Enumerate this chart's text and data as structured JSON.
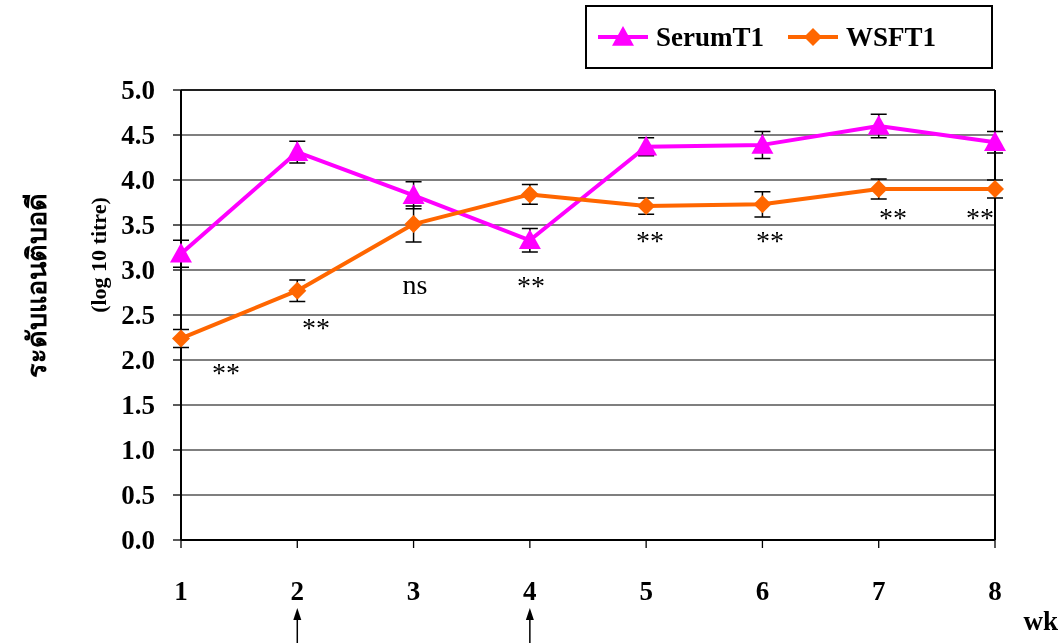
{
  "chart_data": {
    "type": "line",
    "ylabel": "ระดับแอนติบอดี",
    "xlabel": "wk",
    "categories": [
      "1",
      "2",
      "3",
      "4",
      "5",
      "6",
      "7",
      "8"
    ],
    "series": [
      {
        "name": "SerumT1",
        "color": "#ff00ff",
        "marker": "triangle",
        "values": [
          3.18,
          4.31,
          3.83,
          3.33,
          4.37,
          4.39,
          4.6,
          4.42
        ],
        "errors": [
          0.15,
          0.12,
          0.15,
          0.13,
          0.1,
          0.15,
          0.13,
          0.12
        ]
      },
      {
        "name": "WSFT1",
        "color": "#ff6600",
        "marker": "diamond",
        "values": [
          2.24,
          2.77,
          3.51,
          3.84,
          3.71,
          3.73,
          3.9,
          3.9
        ],
        "errors": [
          0.1,
          0.12,
          0.2,
          0.11,
          0.09,
          0.14,
          0.11,
          0.1
        ]
      }
    ],
    "ylim": [
      0,
      5
    ],
    "yticks": [
      {
        "value": 0,
        "label": "0.0"
      },
      {
        "value": 0.5,
        "label": "0.5"
      },
      {
        "value": 1,
        "label": "1.0"
      },
      {
        "value": 1.5,
        "label": "1.5"
      },
      {
        "value": 2,
        "label": "2.0"
      },
      {
        "value": 2.5,
        "label": "2.5"
      },
      {
        "value": 3,
        "label": "3.0"
      },
      {
        "value": 3.5,
        "label": "3.5"
      },
      {
        "value": 4,
        "label": "4.0"
      },
      {
        "value": 4.5,
        "label": "4.5"
      },
      {
        "value": 5,
        "label": "5.0"
      }
    ],
    "grid": "y",
    "legend": "top right",
    "line_style": "solid",
    "annotations": [
      "(log 10 titre)",
      "**",
      "**",
      "ns",
      "**",
      "**",
      "**",
      "**",
      "**"
    ]
  }
}
